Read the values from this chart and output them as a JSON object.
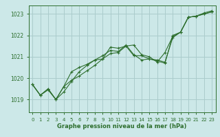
{
  "xlabel": "Graphe pression niveau de la mer (hPa)",
  "ylabel": "",
  "bg_color": "#cce8e8",
  "grid_color": "#aacccc",
  "line_color": "#2d6e2d",
  "x_ticks": [
    0,
    1,
    2,
    3,
    4,
    5,
    6,
    7,
    8,
    9,
    10,
    11,
    12,
    13,
    14,
    15,
    16,
    17,
    18,
    19,
    20,
    21,
    22,
    23
  ],
  "y_ticks": [
    1019,
    1020,
    1021,
    1022,
    1023
  ],
  "ylim": [
    1018.4,
    1023.4
  ],
  "xlim": [
    -0.5,
    23.5
  ],
  "series": [
    [
      1019.7,
      1019.2,
      1019.5,
      1019.0,
      1019.6,
      1019.9,
      1020.1,
      1020.35,
      1020.6,
      1020.9,
      1021.15,
      1021.2,
      1021.5,
      1021.05,
      1021.05,
      1020.9,
      1020.85,
      1020.75,
      1021.9,
      1022.15,
      1022.85,
      1022.9,
      1023.0,
      1023.1
    ],
    [
      1019.7,
      1019.2,
      1019.5,
      1019.0,
      1019.35,
      1019.85,
      1020.3,
      1020.6,
      1020.85,
      1021.05,
      1021.3,
      1021.25,
      1021.55,
      1021.1,
      1020.85,
      1020.9,
      1020.8,
      1020.7,
      1022.0,
      1022.15,
      1022.85,
      1022.9,
      1023.0,
      1023.1
    ],
    [
      1019.7,
      1019.2,
      1019.45,
      1019.0,
      1019.6,
      1020.3,
      1020.5,
      1020.65,
      1020.85,
      1020.9,
      1021.45,
      1021.4,
      1021.5,
      1021.55,
      1021.1,
      1021.0,
      1020.75,
      1021.2,
      1021.95,
      1022.15,
      1022.85,
      1022.9,
      1023.05,
      1023.15
    ]
  ],
  "xlabel_fontsize": 6.0,
  "tick_fontsize": 5.0,
  "xlabel_color": "#2d6e2d",
  "spine_color": "#2d6e2d"
}
